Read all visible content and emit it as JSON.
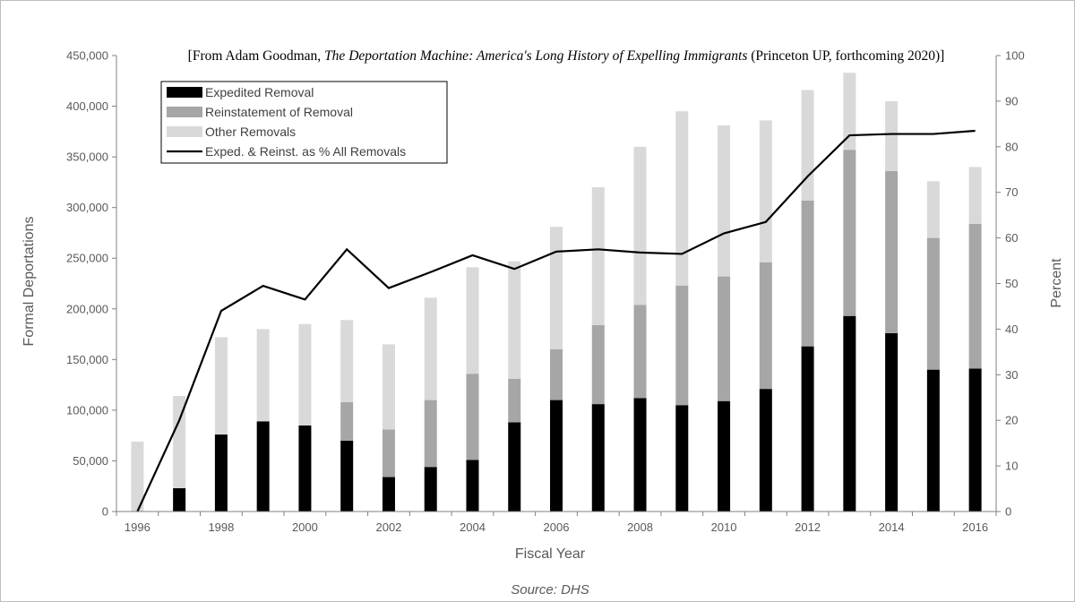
{
  "chart_data": {
    "type": "bar",
    "stacked": true,
    "citation": {
      "prefix": "[From Adam Goodman, ",
      "book_title": "The Deportation Machine: America's Long History of Expelling Immigrants",
      "suffix": " (Princeton UP, forthcoming 2020)]"
    },
    "xlabel": "Fiscal Year",
    "ylabel": "Formal Deportations",
    "ylabel_right": "Percent",
    "source": "Source: DHS",
    "ylim": [
      0,
      450000
    ],
    "ylim_right": [
      0,
      100
    ],
    "y_ticks": [
      "0",
      "50,000",
      "100,000",
      "150,000",
      "200,000",
      "250,000",
      "300,000",
      "350,000",
      "400,000",
      "450,000"
    ],
    "y_ticks_right": [
      "0",
      "10",
      "20",
      "30",
      "40",
      "50",
      "60",
      "70",
      "80",
      "90",
      "100"
    ],
    "x_tick_labels": [
      "1996",
      "1998",
      "2000",
      "2002",
      "2004",
      "2006",
      "2008",
      "2010",
      "2012",
      "2014",
      "2016"
    ],
    "grid": false,
    "legend_position": "top-left",
    "categories": [
      "1996",
      "1997",
      "1998",
      "1999",
      "2000",
      "2001",
      "2002",
      "2003",
      "2004",
      "2005",
      "2006",
      "2007",
      "2008",
      "2009",
      "2010",
      "2011",
      "2012",
      "2013",
      "2014",
      "2015",
      "2016"
    ],
    "series": [
      {
        "name": "Expedited Removal",
        "kind": "bar",
        "color": "#000000",
        "values": [
          0,
          23000,
          76000,
          89000,
          85000,
          70000,
          34000,
          44000,
          51000,
          88000,
          110000,
          106000,
          112000,
          105000,
          109000,
          121000,
          163000,
          193000,
          176000,
          140000,
          141000
        ]
      },
      {
        "name": "Reinstatement of Removal",
        "kind": "bar",
        "color": "#a6a6a6",
        "values": [
          0,
          0,
          0,
          0,
          0,
          38000,
          47000,
          66000,
          85000,
          43000,
          50000,
          78000,
          92000,
          118000,
          123000,
          125000,
          144000,
          164000,
          160000,
          130000,
          143000
        ]
      },
      {
        "name": "Other Removals",
        "kind": "bar",
        "color": "#d9d9d9",
        "values": [
          69000,
          91000,
          96000,
          91000,
          100000,
          81000,
          84000,
          101000,
          105000,
          116000,
          121000,
          136000,
          156000,
          172000,
          149000,
          140000,
          109000,
          76000,
          69000,
          56000,
          56000
        ]
      },
      {
        "name": "Exped. & Reinst. as % All Removals",
        "kind": "line",
        "axis": "right",
        "color": "#000000",
        "values": [
          0,
          20,
          44,
          49.5,
          46.5,
          57.5,
          49,
          52.5,
          56.2,
          53.2,
          57,
          57.5,
          56.8,
          56.5,
          61,
          63.5,
          73.5,
          82.5,
          82.8,
          82.8,
          83.5
        ]
      }
    ]
  }
}
